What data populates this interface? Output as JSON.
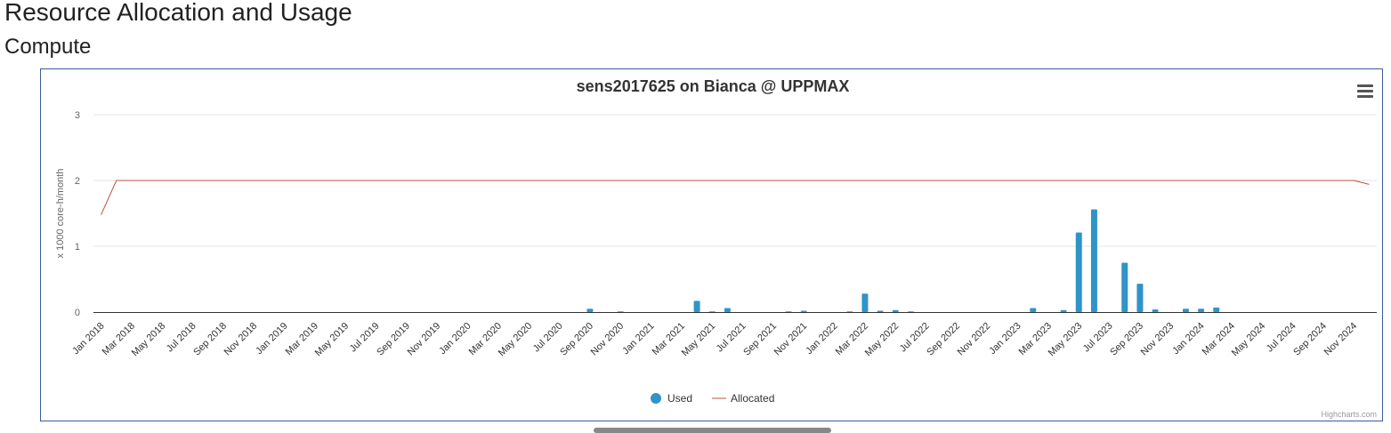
{
  "page": {
    "title": "Resource Allocation and Usage",
    "section": "Compute"
  },
  "chart_menu_icon": "hamburger-menu-icon",
  "credits": "Highcharts.com",
  "colors": {
    "used": "#2f94c8",
    "allocated": "#c0504d",
    "grid": "#e6e6e6",
    "axis": "#333333",
    "border": "#3a5a9c"
  },
  "chart_data": {
    "type": "bar",
    "title": "sens2017625 on Bianca @ UPPMAX",
    "ylabel": "x 1000 core-h/month",
    "xlabel": "",
    "ylim": [
      0,
      3
    ],
    "yticks": [
      "0",
      "1",
      "2",
      "3"
    ],
    "grid": true,
    "legend_position": "bottom-center",
    "categories": [
      "Jan 2018",
      "Feb 2018",
      "Mar 2018",
      "Apr 2018",
      "May 2018",
      "Jun 2018",
      "Jul 2018",
      "Aug 2018",
      "Sep 2018",
      "Oct 2018",
      "Nov 2018",
      "Dec 2018",
      "Jan 2019",
      "Feb 2019",
      "Mar 2019",
      "Apr 2019",
      "May 2019",
      "Jun 2019",
      "Jul 2019",
      "Aug 2019",
      "Sep 2019",
      "Oct 2019",
      "Nov 2019",
      "Dec 2019",
      "Jan 2020",
      "Feb 2020",
      "Mar 2020",
      "Apr 2020",
      "May 2020",
      "Jun 2020",
      "Jul 2020",
      "Aug 2020",
      "Sep 2020",
      "Oct 2020",
      "Nov 2020",
      "Dec 2020",
      "Jan 2021",
      "Feb 2021",
      "Mar 2021",
      "Apr 2021",
      "May 2021",
      "Jun 2021",
      "Jul 2021",
      "Aug 2021",
      "Sep 2021",
      "Oct 2021",
      "Nov 2021",
      "Dec 2021",
      "Jan 2022",
      "Feb 2022",
      "Mar 2022",
      "Apr 2022",
      "May 2022",
      "Jun 2022",
      "Jul 2022",
      "Aug 2022",
      "Sep 2022",
      "Oct 2022",
      "Nov 2022",
      "Dec 2022",
      "Jan 2023",
      "Feb 2023",
      "Mar 2023",
      "Apr 2023",
      "May 2023",
      "Jun 2023",
      "Jul 2023",
      "Aug 2023",
      "Sep 2023",
      "Oct 2023",
      "Nov 2023",
      "Dec 2023",
      "Jan 2024",
      "Feb 2024",
      "Mar 2024",
      "Apr 2024",
      "May 2024",
      "Jun 2024",
      "Jul 2024",
      "Aug 2024",
      "Sep 2024",
      "Oct 2024",
      "Nov 2024",
      "Dec 2024"
    ],
    "tick_labels": [
      "Jan 2018",
      "Mar 2018",
      "May 2018",
      "Jul 2018",
      "Sep 2018",
      "Nov 2018",
      "Jan 2019",
      "Mar 2019",
      "May 2019",
      "Jul 2019",
      "Sep 2019",
      "Nov 2019",
      "Jan 2020",
      "Mar 2020",
      "May 2020",
      "Jul 2020",
      "Sep 2020",
      "Nov 2020",
      "Jan 2021",
      "Mar 2021",
      "May 2021",
      "Jul 2021",
      "Sep 2021",
      "Nov 2021",
      "Jan 2022",
      "Mar 2022",
      "May 2022",
      "Jul 2022",
      "Sep 2022",
      "Nov 2022",
      "Jan 2023",
      "Mar 2023",
      "May 2023",
      "Jul 2023",
      "Sep 2023",
      "Nov 2023",
      "Jan 2024",
      "Mar 2024",
      "May 2024",
      "Jul 2024",
      "Sep 2024",
      "Nov 2024"
    ],
    "series": [
      {
        "name": "Used",
        "type": "column",
        "values": [
          0,
          0,
          0,
          0,
          0,
          0,
          0,
          0,
          0,
          0,
          0,
          0,
          0,
          0,
          0,
          0,
          0,
          0,
          0,
          0,
          0,
          0,
          0,
          0,
          0,
          0,
          0,
          0,
          0,
          0,
          0,
          0,
          0.05,
          0,
          0.01,
          0,
          0,
          0,
          0,
          0.17,
          0.01,
          0.06,
          0,
          0,
          0,
          0.01,
          0.02,
          0,
          0,
          0.01,
          0.28,
          0.02,
          0.03,
          0.01,
          0,
          0,
          0,
          0,
          0,
          0,
          0,
          0.06,
          0,
          0.03,
          1.21,
          1.56,
          0,
          0.75,
          0.43,
          0.04,
          0,
          0.05,
          0.05,
          0.07,
          0,
          0,
          0,
          0,
          0,
          0,
          0,
          0,
          0,
          0
        ]
      },
      {
        "name": "Allocated",
        "type": "line",
        "values": [
          1.48,
          2,
          2,
          2,
          2,
          2,
          2,
          2,
          2,
          2,
          2,
          2,
          2,
          2,
          2,
          2,
          2,
          2,
          2,
          2,
          2,
          2,
          2,
          2,
          2,
          2,
          2,
          2,
          2,
          2,
          2,
          2,
          2,
          2,
          2,
          2,
          2,
          2,
          2,
          2,
          2,
          2,
          2,
          2,
          2,
          2,
          2,
          2,
          2,
          2,
          2,
          2,
          2,
          2,
          2,
          2,
          2,
          2,
          2,
          2,
          2,
          2,
          2,
          2,
          2,
          2,
          2,
          2,
          2,
          2,
          2,
          2,
          2,
          2,
          2,
          2,
          2,
          2,
          2,
          2,
          2,
          2,
          2,
          1.94
        ]
      }
    ]
  }
}
